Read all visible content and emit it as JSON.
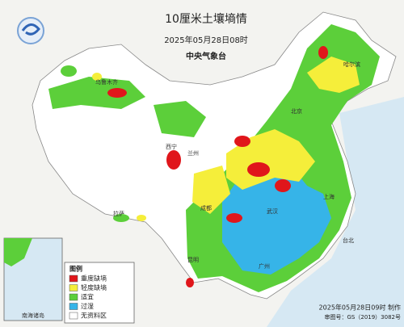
{
  "header": {
    "title": "10厘米土壤墒情",
    "date": "2025年05月28日08时",
    "agency": "中央气象台"
  },
  "legend": {
    "title": "图例",
    "items": [
      {
        "label": "重度缺墒",
        "color": "#e0161b"
      },
      {
        "label": "轻度缺墒",
        "color": "#f5ee3a"
      },
      {
        "label": "适宜",
        "color": "#5ccf3a"
      },
      {
        "label": "过湿",
        "color": "#36b4e8"
      },
      {
        "label": "无资料区",
        "color": "#ffffff"
      }
    ]
  },
  "inset": {
    "label": "南海诸岛"
  },
  "places": [
    "乌鲁木齐",
    "拉萨",
    "西宁",
    "兰州",
    "成都",
    "北京",
    "武汉",
    "上海",
    "广州",
    "昆明",
    "哈尔滨",
    "台北"
  ],
  "footer": {
    "made": "2025年05月28日09时 制作",
    "approval": "审图号：GS（2019）3082号"
  }
}
